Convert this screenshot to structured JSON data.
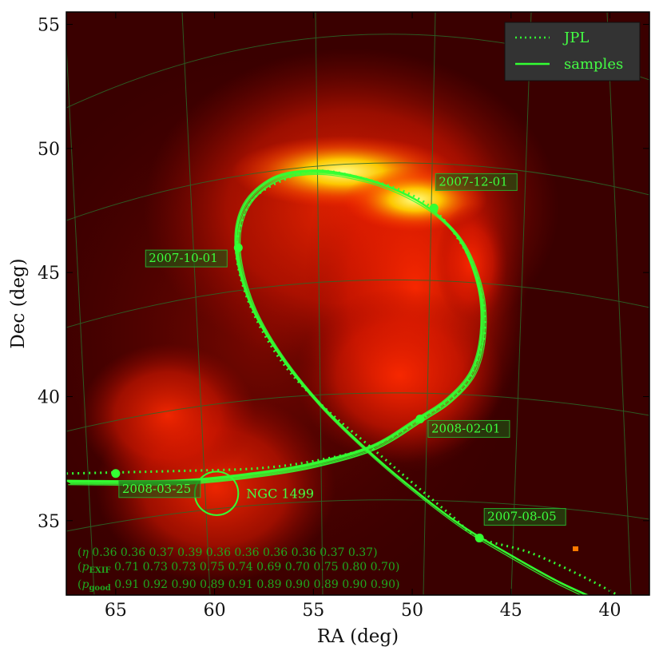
{
  "chart_data": {
    "type": "line",
    "xlabel": "RA (deg)",
    "ylabel": "Dec (deg)",
    "xlim": [
      67.5,
      38
    ],
    "ylim": [
      32,
      55.5
    ],
    "xticks": [
      "65",
      "60",
      "55",
      "50",
      "45",
      "40"
    ],
    "xtick_values": [
      65,
      60,
      55,
      50,
      45,
      40
    ],
    "yticks": [
      "35",
      "40",
      "45",
      "50",
      "55"
    ],
    "ytick_values": [
      35,
      40,
      45,
      50,
      55
    ],
    "grid": true,
    "legend_position": "top-right",
    "legend": [
      {
        "label": "JPL",
        "style": "dotted"
      },
      {
        "label": "samples",
        "style": "solid"
      }
    ],
    "series": [
      {
        "name": "JPL",
        "style": "dotted",
        "points": [
          [
            38.5,
            31.5
          ],
          [
            41.0,
            32.6
          ],
          [
            44.0,
            33.7
          ],
          [
            46.6,
            34.3
          ],
          [
            48.0,
            35.2
          ],
          [
            49.8,
            36.4
          ],
          [
            52.0,
            37.9
          ],
          [
            54.5,
            39.6
          ],
          [
            56.5,
            41.3
          ],
          [
            58.0,
            43.3
          ],
          [
            58.8,
            45.2
          ],
          [
            58.8,
            46.5
          ],
          [
            58.0,
            48.0
          ],
          [
            56.0,
            48.9
          ],
          [
            54.5,
            49.1
          ],
          [
            52.5,
            48.8
          ],
          [
            50.5,
            48.3
          ],
          [
            49.0,
            47.6
          ],
          [
            47.8,
            46.5
          ],
          [
            46.8,
            45.0
          ],
          [
            46.3,
            43.0
          ],
          [
            46.7,
            41.5
          ],
          [
            47.5,
            40.3
          ],
          [
            49.5,
            39.1
          ],
          [
            52.0,
            38.0
          ],
          [
            55.0,
            37.4
          ],
          [
            58.0,
            37.1
          ],
          [
            62.0,
            37.0
          ],
          [
            67.5,
            36.9
          ]
        ]
      },
      {
        "name": "samples",
        "style": "solid",
        "points": [
          [
            40.0,
            31.6
          ],
          [
            42.5,
            32.5
          ],
          [
            45.0,
            33.6
          ],
          [
            47.5,
            34.8
          ],
          [
            50.0,
            36.3
          ],
          [
            52.5,
            38.0
          ],
          [
            54.8,
            39.8
          ],
          [
            56.8,
            41.8
          ],
          [
            58.2,
            43.8
          ],
          [
            58.9,
            46.0
          ],
          [
            58.5,
            47.7
          ],
          [
            57.0,
            48.8
          ],
          [
            55.0,
            49.1
          ],
          [
            53.0,
            48.9
          ],
          [
            51.0,
            48.4
          ],
          [
            49.0,
            47.5
          ],
          [
            47.5,
            46.2
          ],
          [
            46.6,
            44.3
          ],
          [
            46.5,
            42.5
          ],
          [
            47.0,
            41.0
          ],
          [
            48.2,
            39.9
          ],
          [
            49.7,
            39.1
          ],
          [
            52.0,
            38.0
          ],
          [
            55.0,
            37.3
          ],
          [
            58.0,
            36.9
          ],
          [
            62.0,
            36.6
          ],
          [
            67.5,
            36.6
          ]
        ]
      }
    ],
    "date_markers": [
      {
        "label": "2007-08-05",
        "ra": 46.6,
        "dec": 34.3
      },
      {
        "label": "2007-10-01",
        "ra": 58.8,
        "dec": 46.0
      },
      {
        "label": "2007-12-01",
        "ra": 48.9,
        "dec": 47.6
      },
      {
        "label": "2008-02-01",
        "ra": 49.6,
        "dec": 39.1
      },
      {
        "label": "2008-03-25",
        "ra": 65.0,
        "dec": 36.9
      }
    ],
    "annotations": [
      {
        "label": "NGC 1499",
        "ra": 59.9,
        "dec": 36.1,
        "radius_deg": 1.1
      }
    ],
    "stats": {
      "eta": {
        "symbol": "η",
        "values": [
          "0.36",
          "0.36",
          "0.37",
          "0.39",
          "0.36",
          "0.36",
          "0.36",
          "0.36",
          "0.37",
          "0.37"
        ]
      },
      "p_exif": {
        "symbol": "p",
        "subscript": "EXIF",
        "values": [
          "0.71",
          "0.73",
          "0.73",
          "0.75",
          "0.74",
          "0.69",
          "0.70",
          "0.75",
          "0.80",
          "0.70"
        ]
      },
      "p_good": {
        "symbol": "p",
        "subscript": "good",
        "values": [
          "0.91",
          "0.92",
          "0.90",
          "0.89",
          "0.91",
          "0.89",
          "0.90",
          "0.89",
          "0.90",
          "0.90"
        ]
      }
    },
    "colors": {
      "curve": "#33ff33",
      "background_dark": "#3a0000",
      "background_red": "#c81400",
      "background_bright": "#ffff70",
      "grid": "#2a6a2a",
      "legend_bg": "#333333"
    }
  }
}
